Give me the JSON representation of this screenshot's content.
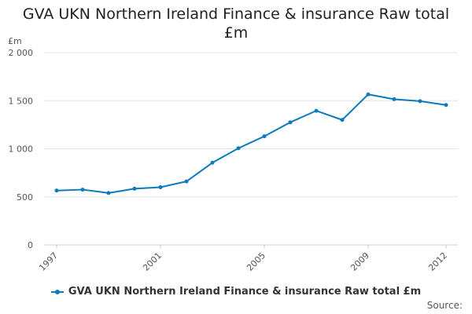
{
  "chart_data": {
    "type": "line",
    "title_lines": [
      "GVA UKN Northern Ireland Finance & insurance Raw total",
      "£m"
    ],
    "ylabel": "£m",
    "xlabel": "",
    "x": [
      1997,
      1998,
      1999,
      2000,
      2001,
      2002,
      2003,
      2004,
      2005,
      2006,
      2007,
      2008,
      2009,
      2010,
      2011,
      2012
    ],
    "x_tick_labels": [
      "1997",
      "2001",
      "2005",
      "2009",
      "2012"
    ],
    "y_tick_labels": [
      "0",
      "500",
      "1 000",
      "1 500",
      "2 000"
    ],
    "y_ticks": [
      0,
      500,
      1000,
      1500,
      2000
    ],
    "ylim": [
      0,
      2000
    ],
    "series": [
      {
        "name": "GVA UKN Northern Ireland Finance & insurance Raw total £m",
        "color": "#0b7bbd",
        "values": [
          565,
          575,
          540,
          585,
          600,
          660,
          855,
          1005,
          1130,
          1275,
          1395,
          1300,
          1565,
          1515,
          1495,
          1455
        ]
      }
    ],
    "grid": true,
    "legend_position": "bottom"
  },
  "source_label": "Source:"
}
